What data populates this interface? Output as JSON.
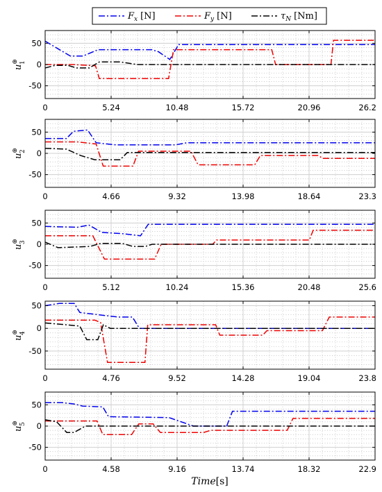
{
  "chart_data": {
    "type": "line",
    "legend": {
      "placement": "top-center",
      "entries": [
        {
          "symbol": "F",
          "subscript": "x",
          "unit": "[N]",
          "color": "#0000ee",
          "dash": "dashdot"
        },
        {
          "symbol": "F",
          "subscript": "y",
          "unit": "[N]",
          "color": "#ee0000",
          "dash": "dashdot"
        },
        {
          "symbol": "τ",
          "subscript": "N",
          "unit": "[Nm]",
          "color": "#000000",
          "dash": "dashdot"
        }
      ]
    },
    "xlabel": {
      "italic": "Time",
      "rest": "[s]"
    },
    "grid": true,
    "panels": [
      {
        "ylabel": {
          "base": "u",
          "sup": "⊕",
          "sub": "1"
        },
        "ylim": [
          -80,
          80
        ],
        "yticks": [
          -50,
          0,
          50
        ],
        "xlim": [
          0,
          26.2
        ],
        "xticks": [
          "0",
          "5.24",
          "10.48",
          "15.72",
          "20.96",
          "26.2"
        ],
        "series": [
          {
            "color": "#0000ee",
            "steps": [
              [
                0,
                55
              ],
              [
                2.0,
                20
              ],
              [
                3.0,
                20
              ],
              [
                4.2,
                35
              ],
              [
                8.5,
                35
              ],
              [
                9.0,
                30
              ],
              [
                9.9,
                12
              ],
              [
                10.6,
                47
              ],
              [
                26.2,
                47
              ]
            ]
          },
          {
            "color": "#ee0000",
            "steps": [
              [
                0,
                0
              ],
              [
                2.2,
                0
              ],
              [
                4.0,
                -3
              ],
              [
                4.3,
                -33
              ],
              [
                9.8,
                -33
              ],
              [
                10.2,
                35
              ],
              [
                18.0,
                35
              ],
              [
                18.3,
                0
              ],
              [
                22.7,
                0
              ],
              [
                22.9,
                57
              ],
              [
                26.2,
                57
              ]
            ]
          },
          {
            "color": "#000000",
            "steps": [
              [
                0,
                -8
              ],
              [
                0.8,
                -2
              ],
              [
                1.8,
                -2
              ],
              [
                2.5,
                -8
              ],
              [
                3.5,
                -8
              ],
              [
                4.3,
                6
              ],
              [
                6.0,
                6
              ],
              [
                7.3,
                0
              ],
              [
                26.2,
                0
              ]
            ]
          }
        ]
      },
      {
        "ylabel": {
          "base": "u",
          "sup": "⊕",
          "sub": "2"
        },
        "ylim": [
          -80,
          80
        ],
        "yticks": [
          -50,
          0,
          50
        ],
        "xlim": [
          0,
          23.3
        ],
        "xticks": [
          "0",
          "4.66",
          "9.32",
          "13.98",
          "18.64",
          "23.3"
        ],
        "series": [
          {
            "color": "#0000ee",
            "steps": [
              [
                0,
                35
              ],
              [
                1.5,
                35
              ],
              [
                2.0,
                52
              ],
              [
                3.0,
                55
              ],
              [
                3.6,
                25
              ],
              [
                5.0,
                20
              ],
              [
                9.2,
                20
              ],
              [
                10.0,
                25
              ],
              [
                23.3,
                25
              ]
            ]
          },
          {
            "color": "#ee0000",
            "steps": [
              [
                0,
                27
              ],
              [
                2.3,
                27
              ],
              [
                3.6,
                22
              ],
              [
                4.1,
                -30
              ],
              [
                6.2,
                -30
              ],
              [
                6.6,
                5
              ],
              [
                10.3,
                5
              ],
              [
                10.8,
                -27
              ],
              [
                14.8,
                -27
              ],
              [
                15.2,
                -5
              ],
              [
                19.3,
                -5
              ],
              [
                19.6,
                -12
              ],
              [
                23.3,
                -12
              ]
            ]
          },
          {
            "color": "#000000",
            "steps": [
              [
                0,
                12
              ],
              [
                1.5,
                10
              ],
              [
                2.5,
                -5
              ],
              [
                3.5,
                -15
              ],
              [
                5.3,
                -15
              ],
              [
                5.8,
                2
              ],
              [
                23.3,
                2
              ]
            ]
          }
        ]
      },
      {
        "ylabel": {
          "base": "u",
          "sup": "⊕",
          "sub": "3"
        },
        "ylim": [
          -80,
          80
        ],
        "yticks": [
          -50,
          0,
          50
        ],
        "xlim": [
          0,
          25.6
        ],
        "xticks": [
          "0",
          "5.12",
          "10.24",
          "15.36",
          "20.48",
          "25.6"
        ],
        "series": [
          {
            "color": "#0000ee",
            "steps": [
              [
                0,
                42
              ],
              [
                2.5,
                40
              ],
              [
                3.4,
                45
              ],
              [
                4.4,
                28
              ],
              [
                6.0,
                25
              ],
              [
                7.4,
                20
              ],
              [
                8.0,
                47
              ],
              [
                25.6,
                47
              ]
            ]
          },
          {
            "color": "#ee0000",
            "steps": [
              [
                0,
                20
              ],
              [
                3.7,
                20
              ],
              [
                4.6,
                -35
              ],
              [
                8.5,
                -35
              ],
              [
                9.0,
                0
              ],
              [
                13.0,
                0
              ],
              [
                13.3,
                10
              ],
              [
                20.5,
                10
              ],
              [
                20.8,
                33
              ],
              [
                25.6,
                33
              ]
            ]
          },
          {
            "color": "#000000",
            "steps": [
              [
                0,
                5
              ],
              [
                1.0,
                -8
              ],
              [
                3.5,
                -5
              ],
              [
                4.3,
                2
              ],
              [
                6.0,
                2
              ],
              [
                6.8,
                -5
              ],
              [
                7.8,
                -5
              ],
              [
                8.3,
                0
              ],
              [
                25.6,
                0
              ]
            ]
          }
        ]
      },
      {
        "ylabel": {
          "base": "u",
          "sup": "⊕",
          "sub": "4"
        },
        "ylim": [
          -90,
          60
        ],
        "yticks": [
          -50,
          0,
          50
        ],
        "xlim": [
          0,
          23.8
        ],
        "xticks": [
          "0",
          "4.76",
          "9.52",
          "14.28",
          "19.04",
          "23.8"
        ],
        "series": [
          {
            "color": "#0000ee",
            "steps": [
              [
                0,
                50
              ],
              [
                1.0,
                55
              ],
              [
                2.1,
                55
              ],
              [
                2.5,
                35
              ],
              [
                4.4,
                28
              ],
              [
                5.3,
                25
              ],
              [
                6.3,
                25
              ],
              [
                6.8,
                0
              ],
              [
                23.8,
                0
              ]
            ]
          },
          {
            "color": "#ee0000",
            "steps": [
              [
                0,
                18
              ],
              [
                3.6,
                18
              ],
              [
                4.0,
                13
              ],
              [
                4.5,
                -75
              ],
              [
                7.2,
                -75
              ],
              [
                7.4,
                8
              ],
              [
                10.0,
                8
              ],
              [
                10.4,
                8
              ],
              [
                12.3,
                8
              ],
              [
                12.6,
                -15
              ],
              [
                15.7,
                -15
              ],
              [
                16.0,
                -5
              ],
              [
                20.0,
                -5
              ],
              [
                20.5,
                25
              ],
              [
                23.8,
                25
              ]
            ]
          },
          {
            "color": "#000000",
            "steps": [
              [
                0,
                12
              ],
              [
                1.5,
                8
              ],
              [
                2.5,
                5
              ],
              [
                3.0,
                -25
              ],
              [
                3.8,
                -25
              ],
              [
                4.2,
                8
              ],
              [
                4.7,
                0
              ],
              [
                23.8,
                0
              ]
            ]
          }
        ]
      },
      {
        "ylabel": {
          "base": "u",
          "sup": "⊕",
          "sub": "5"
        },
        "ylim": [
          -80,
          80
        ],
        "yticks": [
          -50,
          0,
          50
        ],
        "xlim": [
          0,
          22.9
        ],
        "xticks": [
          "0",
          "4.58",
          "9.16",
          "13.74",
          "18.32",
          "22.9"
        ],
        "series": [
          {
            "color": "#0000ee",
            "steps": [
              [
                0,
                55
              ],
              [
                1.2,
                55
              ],
              [
                2.0,
                52
              ],
              [
                2.6,
                47
              ],
              [
                4.0,
                45
              ],
              [
                4.4,
                22
              ],
              [
                8.6,
                20
              ],
              [
                10.3,
                0
              ],
              [
                12.6,
                0
              ],
              [
                13.0,
                35
              ],
              [
                22.9,
                35
              ]
            ]
          },
          {
            "color": "#ee0000",
            "steps": [
              [
                0,
                12
              ],
              [
                3.6,
                12
              ],
              [
                4.0,
                -20
              ],
              [
                6.0,
                -20
              ],
              [
                6.5,
                5
              ],
              [
                7.5,
                5
              ],
              [
                8.0,
                -15
              ],
              [
                11.0,
                -15
              ],
              [
                11.5,
                -10
              ],
              [
                16.8,
                -10
              ],
              [
                17.2,
                18
              ],
              [
                22.9,
                18
              ]
            ]
          },
          {
            "color": "#000000",
            "steps": [
              [
                0,
                15
              ],
              [
                0.8,
                10
              ],
              [
                1.5,
                -15
              ],
              [
                2.0,
                -15
              ],
              [
                2.8,
                0
              ],
              [
                22.9,
                0
              ]
            ]
          }
        ]
      }
    ]
  }
}
